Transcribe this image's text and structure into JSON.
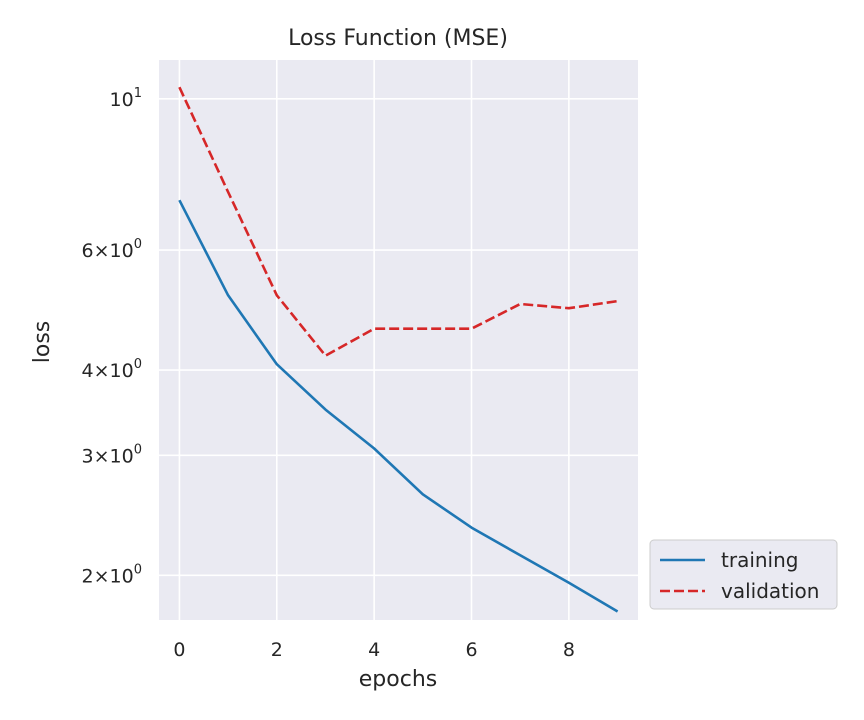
{
  "chart_data": {
    "type": "line",
    "title": "Loss Function (MSE)",
    "xlabel": "epochs",
    "ylabel": "loss",
    "yscale": "log",
    "grid": true,
    "legend_position": "outside-bottom-right",
    "xlim": [
      -0.42,
      9.42
    ],
    "ylim": [
      1.72,
      11.4
    ],
    "x_ticks": [
      {
        "value": 0,
        "label": "0"
      },
      {
        "value": 2,
        "label": "2"
      },
      {
        "value": 4,
        "label": "4"
      },
      {
        "value": 6,
        "label": "6"
      },
      {
        "value": 8,
        "label": "8"
      }
    ],
    "y_ticks": [
      {
        "value": 10,
        "base": "10",
        "exp": "1"
      },
      {
        "value": 6,
        "base": "6×10",
        "exp": "0"
      },
      {
        "value": 4,
        "base": "4×10",
        "exp": "0"
      },
      {
        "value": 3,
        "base": "3×10",
        "exp": "0"
      },
      {
        "value": 2,
        "base": "2×10",
        "exp": "0"
      }
    ],
    "x": [
      0,
      1,
      2,
      3,
      4,
      5,
      6,
      7,
      8,
      9
    ],
    "series": [
      {
        "name": "training",
        "color": "#1f77b4",
        "dash": "solid",
        "values": [
          7.1,
          5.15,
          4.08,
          3.5,
          3.07,
          2.63,
          2.35,
          2.14,
          1.95,
          1.77
        ]
      },
      {
        "name": "validation",
        "color": "#d62728",
        "dash": "dashed",
        "values": [
          10.4,
          7.3,
          5.15,
          4.2,
          4.6,
          4.6,
          4.6,
          5.0,
          4.93,
          5.05
        ]
      }
    ]
  }
}
